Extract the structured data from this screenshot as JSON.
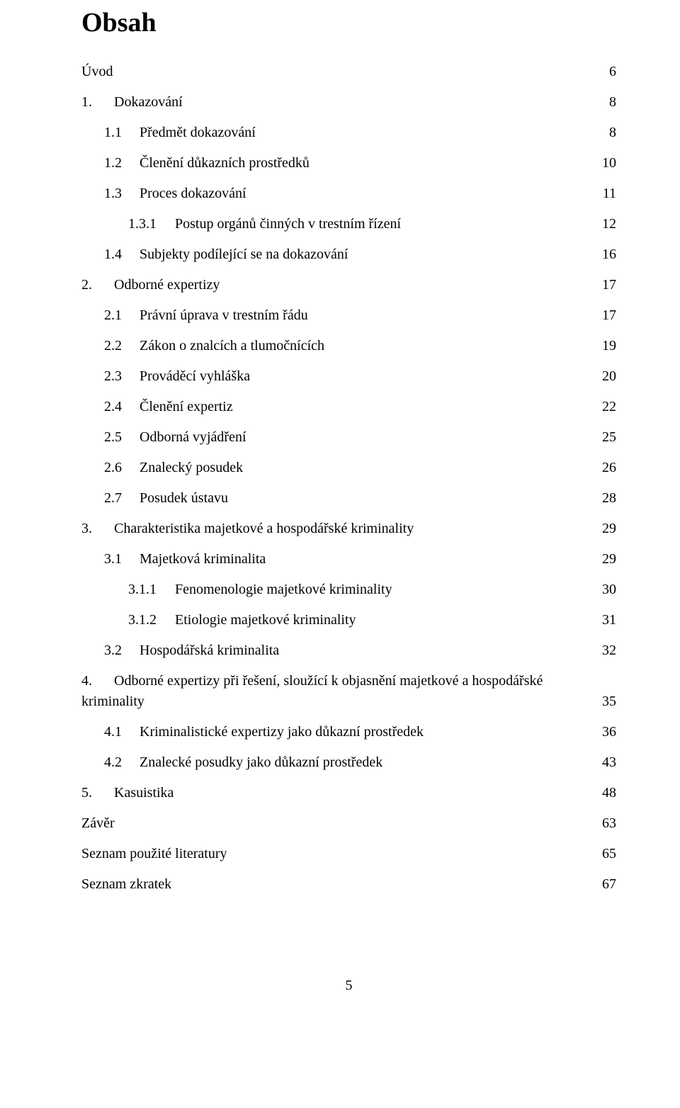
{
  "title": "Obsah",
  "page_number": "5",
  "font": {
    "family": "Times New Roman",
    "title_size_pt": 28,
    "body_size_pt": 15
  },
  "colors": {
    "text": "#000000",
    "background": "#ffffff"
  },
  "num_width": {
    "l0": 46,
    "l1": 50,
    "l2": 66
  },
  "entries": [
    {
      "level": 0,
      "num": "",
      "text": "Úvod",
      "page": "6"
    },
    {
      "level": 0,
      "num": "1.",
      "text": "Dokazování",
      "page": "8"
    },
    {
      "level": 1,
      "num": "1.1",
      "text": "Předmět dokazování",
      "page": "8"
    },
    {
      "level": 1,
      "num": "1.2",
      "text": "Členění důkazních prostředků",
      "page": "10"
    },
    {
      "level": 1,
      "num": "1.3",
      "text": "Proces dokazování",
      "page": "11"
    },
    {
      "level": 2,
      "num": "1.3.1",
      "text": "Postup orgánů činných v trestním řízení",
      "page": "12"
    },
    {
      "level": 1,
      "num": "1.4",
      "text": "Subjekty podílející se na dokazování",
      "page": "16"
    },
    {
      "level": 0,
      "num": "2.",
      "text": "Odborné expertizy",
      "page": "17"
    },
    {
      "level": 1,
      "num": "2.1",
      "text": "Právní úprava v trestním řádu",
      "page": "17"
    },
    {
      "level": 1,
      "num": "2.2",
      "text": "Zákon o znalcích a tlumočnících",
      "page": "19"
    },
    {
      "level": 1,
      "num": "2.3",
      "text": "Prováděcí vyhláška",
      "page": "20"
    },
    {
      "level": 1,
      "num": "2.4",
      "text": "Členění expertiz",
      "page": "22"
    },
    {
      "level": 1,
      "num": "2.5",
      "text": "Odborná vyjádření",
      "page": "25"
    },
    {
      "level": 1,
      "num": "2.6",
      "text": "Znalecký posudek",
      "page": "26"
    },
    {
      "level": 1,
      "num": "2.7",
      "text": "Posudek ústavu",
      "page": "28"
    },
    {
      "level": 0,
      "num": "3.",
      "text": "Charakteristika majetkové a hospodářské kriminality",
      "page": "29"
    },
    {
      "level": 1,
      "num": "3.1",
      "text": "Majetková kriminalita",
      "page": "29"
    },
    {
      "level": 2,
      "num": "3.1.1",
      "text": "Fenomenologie majetkové kriminality",
      "page": "30"
    },
    {
      "level": 2,
      "num": "3.1.2",
      "text": "Etiologie majetkové kriminality",
      "page": "31"
    },
    {
      "level": 1,
      "num": "3.2",
      "text": "Hospodářská kriminalita",
      "page": "32"
    },
    {
      "level": 0,
      "num": "4.",
      "text": "Odborné expertizy při řešení, sloužící k objasnění majetkové a hospodářské kriminality",
      "page": "35",
      "multiline": true
    },
    {
      "level": 1,
      "num": "4.1",
      "text": "Kriminalistické expertizy jako důkazní prostředek",
      "page": "36"
    },
    {
      "level": 1,
      "num": "4.2",
      "text": "Znalecké posudky jako důkazní prostředek",
      "page": "43"
    },
    {
      "level": 0,
      "num": "5.",
      "text": "Kasuistika",
      "page": "48"
    },
    {
      "level": 0,
      "num": "",
      "text": "Závěr",
      "page": "63"
    },
    {
      "level": 0,
      "num": "",
      "text": "Seznam použité literatury",
      "page": "65"
    },
    {
      "level": 0,
      "num": "",
      "text": "Seznam zkratek",
      "page": "67"
    }
  ]
}
